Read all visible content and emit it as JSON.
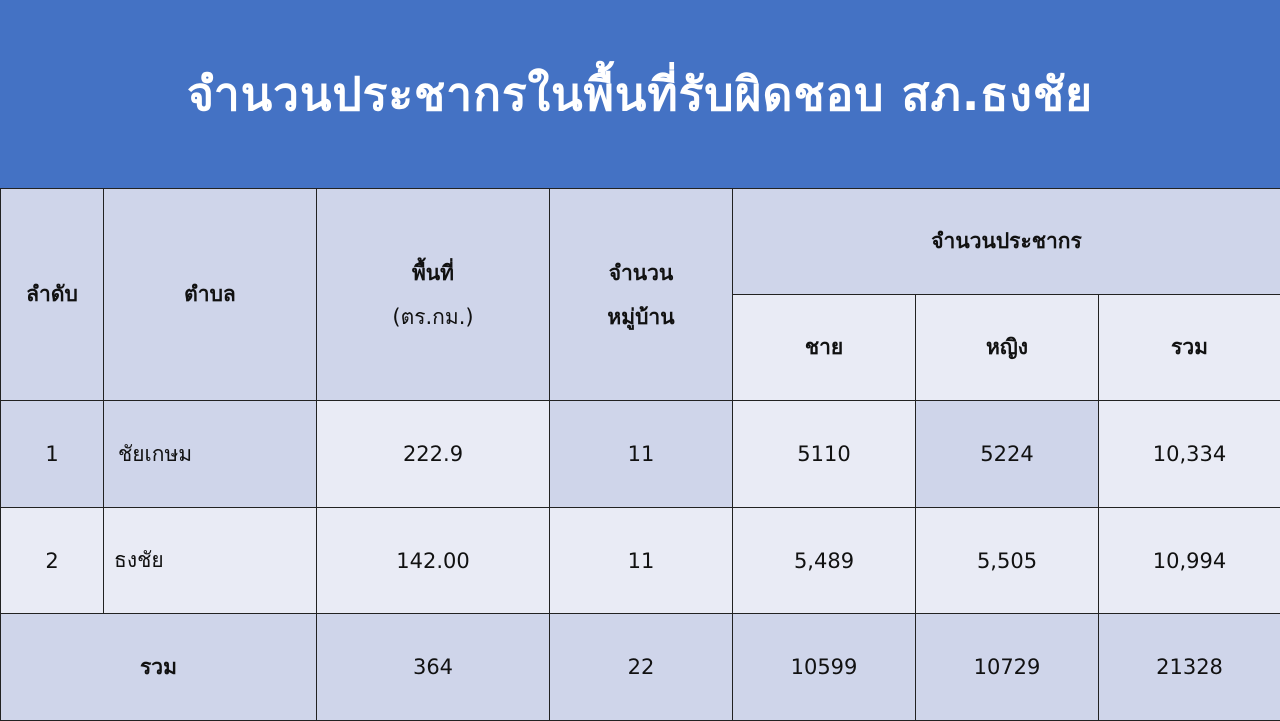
{
  "title": "จำนวนประชากรในพื้นที่รับผิดชอบ สภ.ธงชัย",
  "colors": {
    "title_band": "#4472c4",
    "row_dark": "#cfd5ea",
    "row_light": "#e9ebf5"
  },
  "table": {
    "headers": {
      "order": "ลำดับ",
      "subdistrict": "ตำบล",
      "area_line1": "พื้นที่",
      "area_line2": "(ตร.กม.)",
      "villages_line1": "จำนวน",
      "villages_line2": "หมู่บ้าน",
      "population": "จำนวนประชากร",
      "male": "ชาย",
      "female": "หญิง",
      "total": "รวม"
    },
    "rows": [
      {
        "order": "1",
        "subdistrict": "ชัยเกษม",
        "area": "222.9",
        "villages": "11",
        "male": "5110",
        "female": "5224",
        "total": "10,334"
      },
      {
        "order": "2",
        "subdistrict": "ธงชัย",
        "area": "142.00",
        "villages": "11",
        "male": "5,489",
        "female": "5,505",
        "total": "10,994"
      }
    ],
    "summary": {
      "label": "รวม",
      "area": "364",
      "villages": "22",
      "male": "10599",
      "female": "10729",
      "total": "21328"
    }
  }
}
